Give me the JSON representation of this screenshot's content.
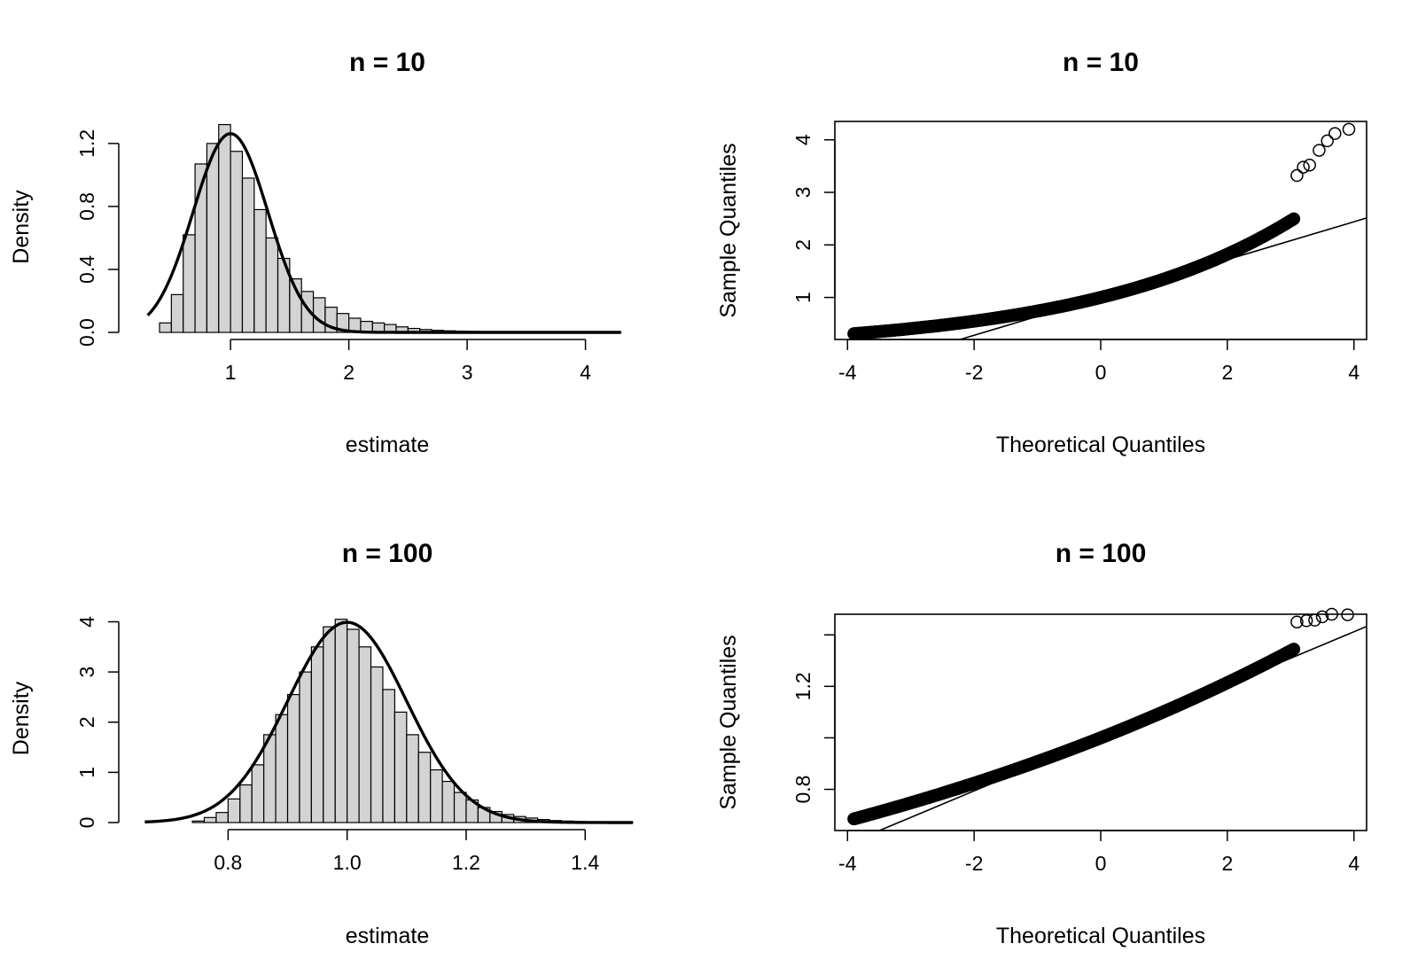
{
  "chart_data": [
    {
      "id": "hist10",
      "type": "bar",
      "title": "n = 10",
      "xlabel": "estimate",
      "ylabel": "Density",
      "x_ticks": [
        1,
        2,
        3,
        4
      ],
      "x_tick_labels": [
        "1",
        "2",
        "3",
        "4"
      ],
      "y_ticks": [
        0.0,
        0.4,
        0.8,
        1.2
      ],
      "y_tick_labels": [
        "0.0",
        "0.4",
        "0.8",
        "1.2"
      ],
      "xlim": [
        0.25,
        4.4
      ],
      "ylim": [
        0,
        1.34
      ],
      "bin_start": 0.4,
      "bin_width": 0.1,
      "values": [
        0.06,
        0.24,
        0.62,
        1.07,
        1.2,
        1.32,
        1.15,
        0.98,
        0.78,
        0.6,
        0.47,
        0.34,
        0.26,
        0.22,
        0.16,
        0.12,
        0.09,
        0.07,
        0.06,
        0.05,
        0.035,
        0.025,
        0.018,
        0.013,
        0.01,
        0.008,
        0.006,
        0.005,
        0.004,
        0.003,
        0.0025,
        0.002,
        0.0015,
        0.0012,
        0.001,
        0.001,
        0.0008,
        0.0006,
        0.0005
      ],
      "curve": {
        "type": "normal",
        "mean": 1.0,
        "sd": 0.316,
        "x_range": [
          0.3,
          4.3
        ]
      },
      "grid": false,
      "legend": "none"
    },
    {
      "id": "qq10",
      "type": "scatter",
      "title": "n = 10",
      "xlabel": "Theoretical Quantiles",
      "ylabel": "Sample Quantiles",
      "x_ticks": [
        -4,
        -2,
        0,
        2,
        4
      ],
      "x_tick_labels": [
        "-4",
        "-2",
        "0",
        "2",
        "4"
      ],
      "y_ticks": [
        1,
        2,
        3,
        4
      ],
      "y_tick_labels": [
        "1",
        "2",
        "3",
        "4"
      ],
      "xlim": [
        -4.2,
        4.2
      ],
      "ylim": [
        0.2,
        4.35
      ],
      "ref_line": {
        "intercept": 1.0,
        "slope": 0.36
      },
      "points": {
        "model": "log-normal",
        "median": 1.0,
        "sigma": 0.3,
        "n": 420
      },
      "tail_points": [
        [
          3.1,
          3.32
        ],
        [
          3.2,
          3.48
        ],
        [
          3.3,
          3.52
        ],
        [
          3.45,
          3.8
        ],
        [
          3.58,
          3.98
        ],
        [
          3.7,
          4.12
        ],
        [
          3.92,
          4.2
        ]
      ],
      "grid": false,
      "legend": "none"
    },
    {
      "id": "hist100",
      "type": "bar",
      "title": "n = 100",
      "xlabel": "estimate",
      "ylabel": "Density",
      "x_ticks": [
        0.8,
        1.0,
        1.2,
        1.4
      ],
      "x_tick_labels": [
        "0.8",
        "1.0",
        "1.2",
        "1.4"
      ],
      "y_ticks": [
        0,
        1,
        2,
        3,
        4
      ],
      "y_tick_labels": [
        "0",
        "1",
        "2",
        "3",
        "4"
      ],
      "xlim": [
        0.655,
        1.48
      ],
      "ylim": [
        0,
        4.15
      ],
      "bin_start": 0.74,
      "bin_width": 0.02,
      "values": [
        0.03,
        0.1,
        0.2,
        0.47,
        0.75,
        1.15,
        1.75,
        2.15,
        2.55,
        3.0,
        3.5,
        3.9,
        4.05,
        3.85,
        3.5,
        3.1,
        2.65,
        2.2,
        1.75,
        1.4,
        1.05,
        0.82,
        0.6,
        0.45,
        0.3,
        0.22,
        0.16,
        0.12,
        0.09,
        0.06,
        0.04,
        0.03,
        0.02,
        0.015,
        0.01,
        0.008,
        0.005
      ],
      "curve": {
        "type": "normal",
        "mean": 1.0,
        "sd": 0.1,
        "x_range": [
          0.66,
          1.48
        ]
      },
      "grid": false,
      "legend": "none"
    },
    {
      "id": "qq100",
      "type": "scatter",
      "title": "n = 100",
      "xlabel": "Theoretical Quantiles",
      "ylabel": "Sample Quantiles",
      "x_ticks": [
        -4,
        -2,
        0,
        2,
        4
      ],
      "x_tick_labels": [
        "-4",
        "-2",
        "0",
        "2",
        "4"
      ],
      "y_ticks": [
        0.8,
        1.0,
        1.2,
        1.4
      ],
      "y_tick_labels": [
        "0.8",
        "",
        "1.2",
        ""
      ],
      "xlim": [
        -4.2,
        4.2
      ],
      "ylim": [
        0.64,
        1.48
      ],
      "ref_line": {
        "intercept": 1.0,
        "slope": 0.103
      },
      "points": {
        "model": "log-normal",
        "median": 1.0,
        "sigma": 0.097,
        "n": 420
      },
      "tail_points": [
        [
          3.1,
          1.45
        ],
        [
          3.25,
          1.455
        ],
        [
          3.38,
          1.457
        ],
        [
          3.5,
          1.47
        ],
        [
          3.65,
          1.48
        ],
        [
          3.9,
          1.478
        ]
      ],
      "grid": false,
      "legend": "none"
    }
  ]
}
